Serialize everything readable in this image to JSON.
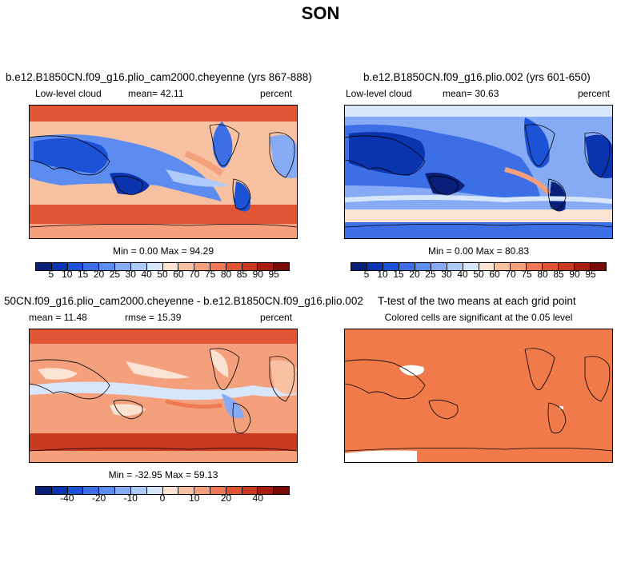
{
  "figure_title": "SON",
  "panels": {
    "p1": {
      "title": "b.e12.B1850CN.f09_g16.plio_cam2000.cheyenne (yrs 867-888)",
      "left": "Low-level cloud",
      "center": "mean=  42.11",
      "right": "percent",
      "stat": "Min =   0.00 Max =  94.29"
    },
    "p2": {
      "title": "b.e12.B1850CN.f09_g16.plio.002 (yrs 601-650)",
      "left": "Low-level cloud",
      "center": "mean=  30.63",
      "right": "percent",
      "stat": "Min =   0.00 Max =  80.83"
    },
    "p3": {
      "title": "50CN.f09_g16.plio_cam2000.cheyenne - b.e12.B1850CN.f09_g16.plio.002",
      "left": "mean =  11.48",
      "center": "rmse =  15.39",
      "right": "percent",
      "stat": "Min = -32.95 Max =  59.13"
    },
    "p4": {
      "title": "T-test of the two means at each grid point",
      "center": "Colored cells are significant at the 0.05 level"
    }
  },
  "chart_data": [
    {
      "type": "heatmap",
      "title": "b.e12.B1850CN.f09_g16.plio_cam2000.cheyenne (yrs 867-888)",
      "variable": "Low-level cloud",
      "units": "percent",
      "mean": 42.11,
      "min": 0.0,
      "max": 94.29,
      "colorbar_labels": [
        "5",
        "10",
        "15",
        "20",
        "25",
        "30",
        "40",
        "50",
        "60",
        "70",
        "75",
        "80",
        "85",
        "90",
        "95"
      ]
    },
    {
      "type": "heatmap",
      "title": "b.e12.B1850CN.f09_g16.plio.002 (yrs 601-650)",
      "variable": "Low-level cloud",
      "units": "percent",
      "mean": 30.63,
      "min": 0.0,
      "max": 80.83,
      "colorbar_labels": [
        "5",
        "10",
        "15",
        "20",
        "25",
        "30",
        "40",
        "50",
        "60",
        "70",
        "75",
        "80",
        "85",
        "90",
        "95"
      ]
    },
    {
      "type": "heatmap",
      "title": "50CN.f09_g16.plio_cam2000.cheyenne - b.e12.B1850CN.f09_g16.plio.002",
      "units": "percent",
      "mean": 11.48,
      "rmse": 15.39,
      "min": -32.95,
      "max": 59.13,
      "colorbar_labels": [
        "-40",
        "-20",
        "-10",
        "0",
        "10",
        "20",
        "40"
      ]
    },
    {
      "type": "heatmap",
      "title": "T-test of the two means at each grid point",
      "annotation": "Colored cells are significant at the 0.05 level",
      "fill_color": "#f07a4a"
    }
  ],
  "colors": {
    "scale": [
      "#08207a",
      "#0b34b0",
      "#1c52d6",
      "#3c6fe6",
      "#5c8cf0",
      "#86aaf4",
      "#aecaf8",
      "#d8e6fb",
      "#fbe3d3",
      "#f8c2a2",
      "#f4a07c",
      "#ee7a55",
      "#e05634",
      "#c83a20",
      "#a81f12",
      "#7a0a08"
    ]
  }
}
